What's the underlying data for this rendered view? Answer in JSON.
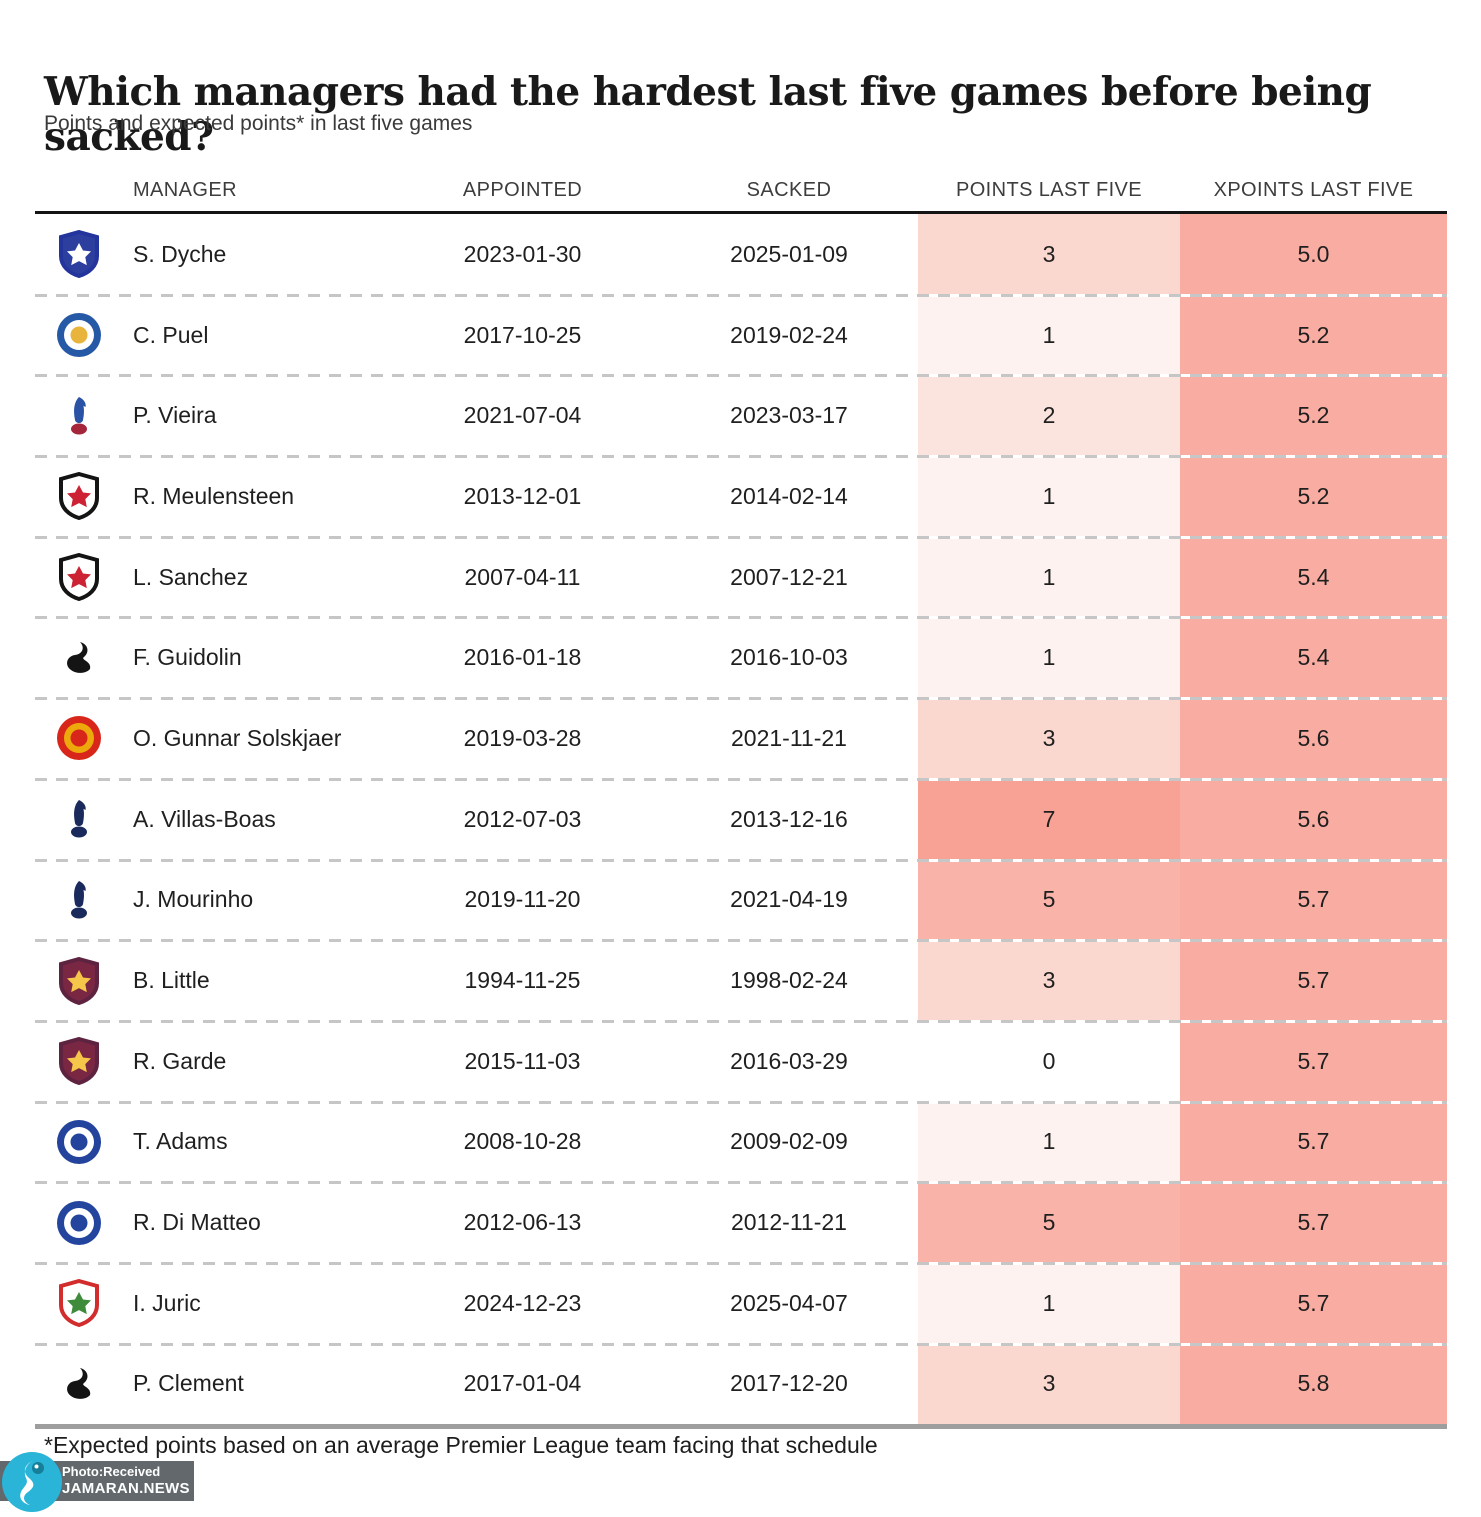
{
  "header": {
    "title": "Which managers had the hardest last five games before being sacked?",
    "subtitle": "Points and expected points* in last five games"
  },
  "footnote": "*Expected points based on an average Premier League team facing that schedule",
  "watermark": {
    "line1": "Photo:Received",
    "line2": "JAMARAN.NEWS",
    "logo_color": "#29b4d8"
  },
  "style": {
    "points_scale": {
      "0": "#ffffff",
      "1": "#fdf2ef",
      "2": "#fbe3de",
      "3": "#fad7cf",
      "5": "#f9b3a8",
      "7": "#f8a296"
    },
    "xpoints_bg": "#f9ada2",
    "header_rule": "#141414",
    "bottom_rule": "#9e9e9e"
  },
  "crests": {
    "everton": {
      "shape": "shield",
      "c1": "#23349c",
      "c2": "#2c3f9e",
      "c3": "#ffffff"
    },
    "leicester": {
      "shape": "circle",
      "c1": "#2558a5",
      "c2": "#ffffff",
      "c3": "#e9b43c"
    },
    "crystal-palace": {
      "shape": "bird",
      "c1": "#2a52a5",
      "c2": "#ffffff",
      "c3": "#a5253a"
    },
    "fulham": {
      "shape": "shield",
      "c1": "#141414",
      "c2": "#ffffff",
      "c3": "#cc2233"
    },
    "swansea": {
      "shape": "swan",
      "c1": "#141414",
      "c2": "#ffffff",
      "c3": "#141414"
    },
    "man-utd": {
      "shape": "circle",
      "c1": "#d8271a",
      "c2": "#eda90c",
      "c3": "#d8271a"
    },
    "tottenham": {
      "shape": "bird",
      "c1": "#1b2a5c",
      "c2": "#ffffff",
      "c3": "#1b2a5c"
    },
    "aston-villa": {
      "shape": "shield",
      "c1": "#5e2340",
      "c2": "#7a2743",
      "c3": "#f6c64a"
    },
    "portsmouth": {
      "shape": "circle",
      "c1": "#24439c",
      "c2": "#ffffff",
      "c3": "#24439c"
    },
    "chelsea": {
      "shape": "circle",
      "c1": "#23459e",
      "c2": "#ffffff",
      "c3": "#23459e"
    },
    "southampton": {
      "shape": "shield",
      "c1": "#d22c2c",
      "c2": "#ffffff",
      "c3": "#3f8b3c"
    }
  },
  "chart_data": {
    "type": "table",
    "title": "Which managers had the hardest last five games before being sacked?",
    "subtitle": "Points and expected points* in last five games",
    "columns": [
      "MANAGER",
      "APPOINTED",
      "SACKED",
      "POINTS LAST FIVE",
      "XPOINTS LAST FIVE"
    ],
    "color_encoding": "red cell shading scales with points / expected points value",
    "rows": [
      {
        "manager": "S. Dyche",
        "team": "everton",
        "appointed": "2023-01-30",
        "sacked": "2025-01-09",
        "points": 3,
        "xpoints": "5.0"
      },
      {
        "manager": "C. Puel",
        "team": "leicester",
        "appointed": "2017-10-25",
        "sacked": "2019-02-24",
        "points": 1,
        "xpoints": "5.2"
      },
      {
        "manager": "P. Vieira",
        "team": "crystal-palace",
        "appointed": "2021-07-04",
        "sacked": "2023-03-17",
        "points": 2,
        "xpoints": "5.2"
      },
      {
        "manager": "R. Meulensteen",
        "team": "fulham",
        "appointed": "2013-12-01",
        "sacked": "2014-02-14",
        "points": 1,
        "xpoints": "5.2"
      },
      {
        "manager": "L. Sanchez",
        "team": "fulham",
        "appointed": "2007-04-11",
        "sacked": "2007-12-21",
        "points": 1,
        "xpoints": "5.4"
      },
      {
        "manager": "F. Guidolin",
        "team": "swansea",
        "appointed": "2016-01-18",
        "sacked": "2016-10-03",
        "points": 1,
        "xpoints": "5.4"
      },
      {
        "manager": "O. Gunnar Solskjaer",
        "team": "man-utd",
        "appointed": "2019-03-28",
        "sacked": "2021-11-21",
        "points": 3,
        "xpoints": "5.6"
      },
      {
        "manager": "A. Villas-Boas",
        "team": "tottenham",
        "appointed": "2012-07-03",
        "sacked": "2013-12-16",
        "points": 7,
        "xpoints": "5.6"
      },
      {
        "manager": "J. Mourinho",
        "team": "tottenham",
        "appointed": "2019-11-20",
        "sacked": "2021-04-19",
        "points": 5,
        "xpoints": "5.7"
      },
      {
        "manager": "B. Little",
        "team": "aston-villa",
        "appointed": "1994-11-25",
        "sacked": "1998-02-24",
        "points": 3,
        "xpoints": "5.7"
      },
      {
        "manager": "R. Garde",
        "team": "aston-villa",
        "appointed": "2015-11-03",
        "sacked": "2016-03-29",
        "points": 0,
        "xpoints": "5.7"
      },
      {
        "manager": "T. Adams",
        "team": "portsmouth",
        "appointed": "2008-10-28",
        "sacked": "2009-02-09",
        "points": 1,
        "xpoints": "5.7"
      },
      {
        "manager": "R. Di Matteo",
        "team": "chelsea",
        "appointed": "2012-06-13",
        "sacked": "2012-11-21",
        "points": 5,
        "xpoints": "5.7"
      },
      {
        "manager": "I. Juric",
        "team": "southampton",
        "appointed": "2024-12-23",
        "sacked": "2025-04-07",
        "points": 1,
        "xpoints": "5.7"
      },
      {
        "manager": "P. Clement",
        "team": "swansea",
        "appointed": "2017-01-04",
        "sacked": "2017-12-20",
        "points": 3,
        "xpoints": "5.8"
      }
    ]
  }
}
